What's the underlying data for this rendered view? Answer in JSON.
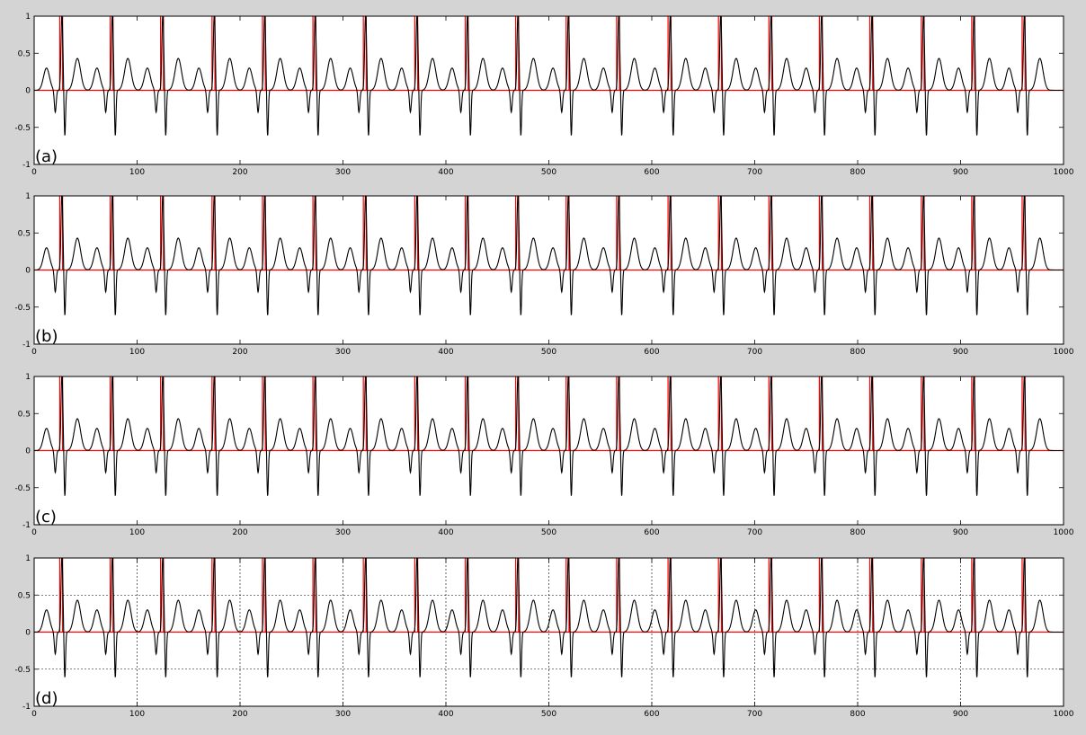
{
  "figure": {
    "background": "#d4d4d4",
    "axes_background": "#ffffff",
    "ecg_color": "#000000",
    "marker_color": "#ff0000"
  },
  "chart_data": [
    {
      "type": "line",
      "panel_label": "(a)",
      "xlim": [
        0,
        1000
      ],
      "ylim": [
        -1,
        1
      ],
      "xticks": [
        0,
        100,
        200,
        300,
        400,
        500,
        600,
        700,
        800,
        900,
        1000
      ],
      "yticks": [
        1,
        0.5,
        0,
        -0.5,
        -1
      ],
      "grid": false,
      "beat_period": 49.15,
      "r_peak_positions": [
        27,
        76,
        125,
        175,
        224,
        273,
        322,
        372,
        421,
        470,
        519,
        568,
        618,
        667,
        716,
        765,
        814,
        864,
        913,
        962
      ],
      "series": [
        {
          "color": "#000000",
          "description_values": {
            "p_wave_amplitude": 0.3,
            "r_peak_amplitude": 1.0,
            "s_wave_amplitude": -0.6,
            "t_wave_amplitude": 0.43
          }
        },
        {
          "color": "#ff0000"
        }
      ]
    },
    {
      "type": "line",
      "panel_label": "(b)",
      "xlim": [
        0,
        1000
      ],
      "ylim": [
        -1,
        1
      ],
      "xticks": [
        0,
        100,
        200,
        300,
        400,
        500,
        600,
        700,
        800,
        900,
        1000
      ],
      "yticks": [
        1,
        0.5,
        0,
        -0.5,
        -1
      ],
      "grid": false,
      "beat_period": 49.15,
      "r_peak_positions": [
        27,
        76,
        125,
        175,
        224,
        273,
        322,
        372,
        421,
        470,
        519,
        568,
        618,
        667,
        716,
        765,
        814,
        864,
        913,
        962
      ],
      "series": [
        {
          "color": "#000000"
        },
        {
          "color": "#ff0000"
        }
      ]
    },
    {
      "type": "line",
      "panel_label": "(c)",
      "xlim": [
        0,
        1000
      ],
      "ylim": [
        -1,
        1
      ],
      "xticks": [
        0,
        100,
        200,
        300,
        400,
        500,
        600,
        700,
        800,
        900,
        1000
      ],
      "yticks": [
        1,
        0.5,
        0,
        -0.5,
        -1
      ],
      "grid": false,
      "beat_period": 49.15,
      "r_peak_positions": [
        27,
        76,
        125,
        175,
        224,
        273,
        322,
        372,
        421,
        470,
        519,
        568,
        618,
        667,
        716,
        765,
        814,
        864,
        913,
        962
      ],
      "series": [
        {
          "color": "#000000"
        },
        {
          "color": "#ff0000"
        }
      ]
    },
    {
      "type": "line",
      "panel_label": "(d)",
      "xlim": [
        0,
        1000
      ],
      "ylim": [
        -1,
        1
      ],
      "xticks": [
        0,
        100,
        200,
        300,
        400,
        500,
        600,
        700,
        800,
        900,
        1000
      ],
      "yticks": [
        1,
        0.5,
        0,
        -0.5,
        -1
      ],
      "grid": true,
      "grid_style": "dotted",
      "beat_period": 49.15,
      "r_peak_positions": [
        27,
        76,
        125,
        175,
        224,
        273,
        322,
        372,
        421,
        470,
        519,
        568,
        618,
        667,
        716,
        765,
        814,
        864,
        913,
        962
      ],
      "series": [
        {
          "color": "#000000"
        },
        {
          "color": "#ff0000"
        }
      ]
    }
  ]
}
